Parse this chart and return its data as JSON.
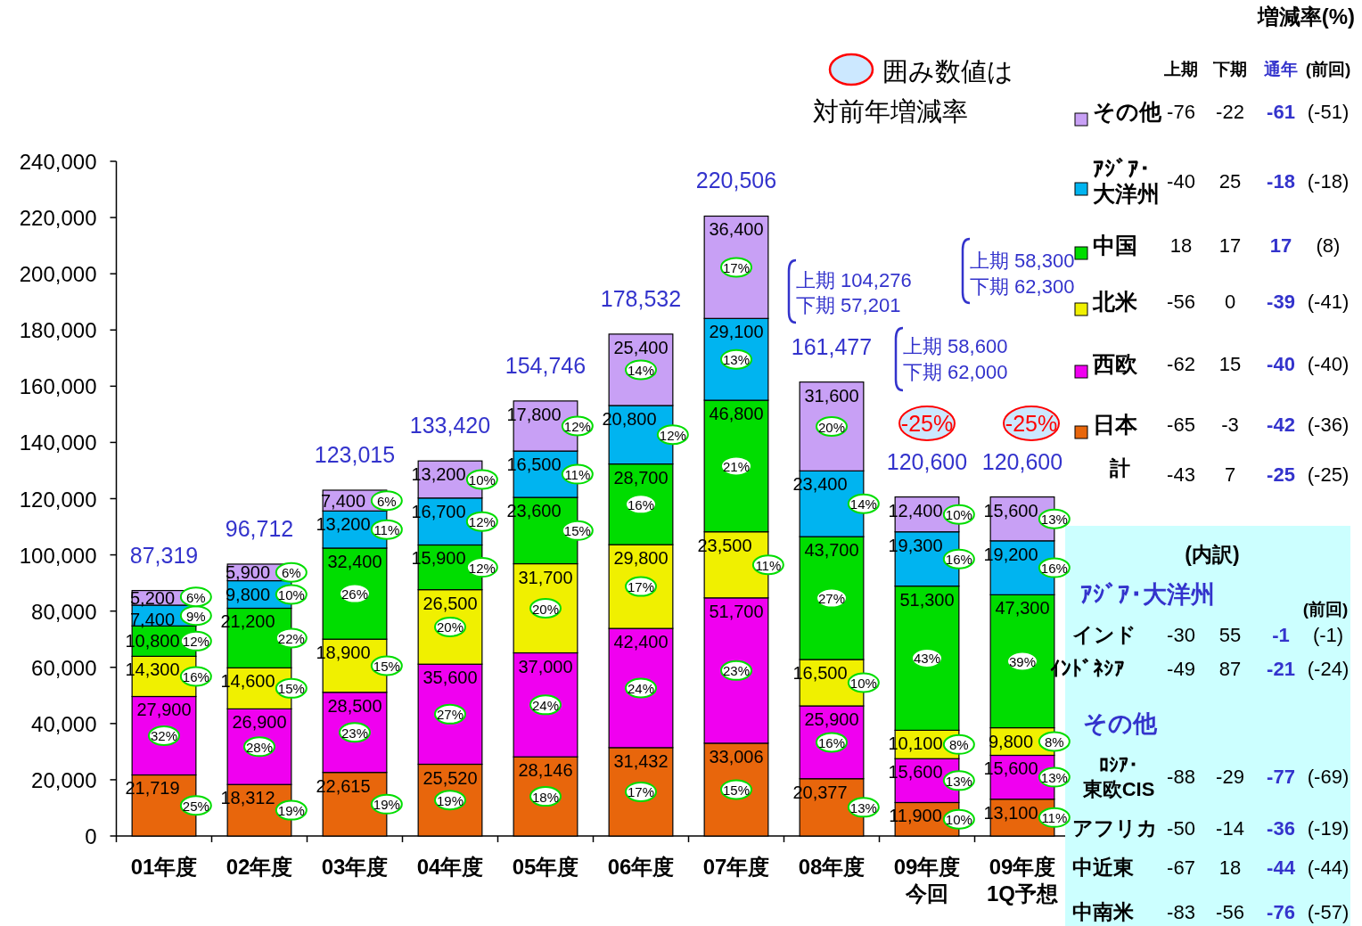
{
  "chart_data": {
    "type": "bar",
    "stacked": true,
    "legend": "right",
    "categories": [
      "01年度",
      "02年度",
      "03年度",
      "04年度",
      "05年度",
      "06年度",
      "07年度",
      "08年度",
      "09年度今回",
      "09年度1Q予想"
    ],
    "series": [
      {
        "name": "日本",
        "color": "#e8660c",
        "values": [
          21719,
          18312,
          22615,
          25520,
          28146,
          31432,
          33006,
          20377,
          11900,
          13100
        ],
        "value_labels": [
          "21,719",
          "18,312",
          "22,615",
          "25,520",
          "28,146",
          "31,432",
          "33,006",
          "20,377",
          "11,900",
          "13,100"
        ]
      },
      {
        "name": "西欧",
        "color": "#f000f0",
        "values": [
          27900,
          26900,
          28500,
          35600,
          37000,
          42400,
          51700,
          25900,
          15600,
          15600
        ],
        "value_labels": [
          "27,900",
          "26,900",
          "28,500",
          "35,600",
          "37,000",
          "42,400",
          "51,700",
          "25,900",
          "15,600",
          "15,600"
        ]
      },
      {
        "name": "北米",
        "color": "#f0f000",
        "values": [
          14300,
          14600,
          18900,
          26500,
          31700,
          29800,
          23500,
          16500,
          10100,
          9800
        ],
        "value_labels": [
          "14,300",
          "14,600",
          "18,900",
          "26,500",
          "31,700",
          "29,800",
          "23,500",
          "16,500",
          "10,100",
          "9,800"
        ]
      },
      {
        "name": "中国",
        "color": "#00dd00",
        "values": [
          10800,
          21200,
          32400,
          15900,
          23600,
          28700,
          46800,
          43700,
          51300,
          47300
        ],
        "value_labels": [
          "10,800",
          "21,200",
          "32,400",
          "15,900",
          "23,600",
          "28,700",
          "46,800",
          "43,700",
          "51,300",
          "47,300"
        ]
      },
      {
        "name": "ｱｼﾞｱ･大洋州",
        "color": "#00b4f0",
        "values": [
          7400,
          9800,
          13200,
          16700,
          16500,
          20800,
          29100,
          23400,
          19300,
          19200
        ],
        "value_labels": [
          "7,400",
          "9,800",
          "13,200",
          "16,700",
          "16,500",
          "20,800",
          "29,100",
          "23,400",
          "19,300",
          "19,200"
        ]
      },
      {
        "name": "その他",
        "color": "#c8a0f5",
        "values": [
          5200,
          5900,
          7400,
          13200,
          17800,
          25400,
          36400,
          31600,
          12400,
          15600
        ],
        "value_labels": [
          "5,200",
          "5,900",
          "7,400",
          "13,200",
          "17,800",
          "25,400",
          "36,400",
          "31,600",
          "12,400",
          "15,600"
        ]
      }
    ],
    "totals": [
      "87,319",
      "96,712",
      "123,015",
      "133,420",
      "154,746",
      "178,532",
      "220,506",
      "161,477",
      "120,600",
      "120,600"
    ],
    "ylim": [
      0,
      240000
    ],
    "yticks": [
      {
        "value": 0,
        "label": "0"
      },
      {
        "value": 20000,
        "label": "20,000"
      },
      {
        "value": 40000,
        "label": "40,000"
      },
      {
        "value": 60000,
        "label": "60,000"
      },
      {
        "value": 80000,
        "label": "80,000"
      },
      {
        "value": 100000,
        "label": "100,000"
      },
      {
        "value": 120000,
        "label": "120,000"
      },
      {
        "value": 140000,
        "label": "140,000"
      },
      {
        "value": 160000,
        "label": "160,000"
      },
      {
        "value": 180000,
        "label": "180,000"
      },
      {
        "value": 200000,
        "label": "200,000"
      },
      {
        "value": 220000,
        "label": "220,000"
      },
      {
        "value": 240000,
        "label": "240,000"
      }
    ],
    "annotations": [
      "囲み数値は",
      "対前年増減率",
      "増減率(%)",
      "上期 下期 通年 (前回)",
      "-76 -22 -61 (-51)",
      "-40 25 -18 (-18)",
      "18 17 17 (8)",
      "-56 0 -39 (-41)",
      "-62 15 -40 (-40)",
      "-65 -3 -42 (-36)",
      "計",
      "-43 7 -25 (-25)",
      "上期 104,276",
      "下期 57,201",
      "上期 58,600",
      "下期 62,000",
      "上期 58,300",
      "下期 62,300",
      "(内訳)",
      "ｱｼﾞｱ･大洋州",
      "(前回)",
      "インド",
      "-30 55 -1 (-1)",
      "ｲﾝﾄﾞﾈｼｱ",
      "-49 87 -21 (-24)",
      "その他",
      "ﾛｼｱ･東欧CIS",
      "-88 -29 -77 (-69)",
      "アフリカ",
      "-50 -14 -36 (-19)",
      "中近東",
      "-67 18 -44 (-44)",
      "中南米",
      "-83 -56 -76 (-57)",
      "-25%",
      "-25%",
      "25%",
      "32%",
      "16%",
      "12%",
      "9%",
      "6%",
      "19%",
      "28%",
      "15%",
      "22%",
      "10%",
      "6%",
      "19%",
      "23%",
      "15%",
      "26%",
      "11%",
      "6%",
      "19%",
      "27%",
      "20%",
      "12%",
      "12%",
      "10%",
      "18%",
      "24%",
      "20%",
      "15%",
      "11%",
      "12%",
      "17%",
      "24%",
      "17%",
      "16%",
      "12%",
      "14%",
      "15%",
      "23%",
      "11%",
      "21%",
      "13%",
      "17%",
      "13%",
      "16%",
      "10%",
      "27%",
      "14%",
      "20%",
      "10%",
      "13%",
      "8%",
      "43%",
      "16%",
      "10%",
      "11%",
      "13%",
      "8%",
      "39%",
      "16%",
      "13%"
    ]
  }
}
